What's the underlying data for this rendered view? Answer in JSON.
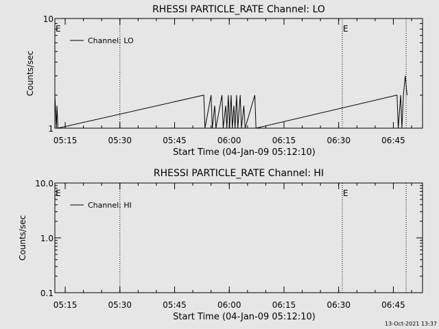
{
  "colors": {
    "background": "#e6e6e6",
    "foreground": "#000000"
  },
  "footer": {
    "timestamp": "13-Oct-2021 13:37"
  },
  "chart_data": [
    {
      "type": "line",
      "title": "RHESSI PARTICLE_RATE Channel: LO",
      "xlabel": "Start Time (04-Jan-09 05:12:10)",
      "ylabel": "Counts/sec",
      "yscale": "log",
      "ylim": [
        1,
        10
      ],
      "xlim": [
        "05:12:10",
        "06:53:00"
      ],
      "yticks": [
        {
          "value": 1,
          "label": "1"
        },
        {
          "value": 10,
          "label": "10"
        }
      ],
      "xticks": [
        "05:15",
        "05:30",
        "05:45",
        "06:00",
        "06:15",
        "06:30",
        "06:45"
      ],
      "event_markers": [
        {
          "time": "05:12:10",
          "label": "E"
        },
        {
          "time": "05:30:00",
          "label": ""
        },
        {
          "time": "06:31:00",
          "label": "E"
        },
        {
          "time": "06:48:30",
          "label": ""
        }
      ],
      "legend": {
        "position": "top-left",
        "entries": [
          "Channel: LO"
        ]
      },
      "series": [
        {
          "name": "Channel: LO",
          "points": [
            [
              "05:12:10",
              2
            ],
            [
              "05:12:35",
              1
            ],
            [
              "05:12:45",
              1.6
            ],
            [
              "05:13:00",
              1
            ],
            [
              "05:53:00",
              2
            ],
            [
              "05:53:20",
              1
            ],
            [
              "05:55:00",
              2
            ],
            [
              "05:55:20",
              1
            ],
            [
              "05:56:00",
              1.6
            ],
            [
              "05:56:20",
              1
            ],
            [
              "05:58:00",
              2
            ],
            [
              "05:58:20",
              1
            ],
            [
              "05:59:00",
              1.6
            ],
            [
              "05:59:20",
              1
            ],
            [
              "05:59:45",
              2
            ],
            [
              "06:00:05",
              1
            ],
            [
              "06:00:30",
              2
            ],
            [
              "06:00:50",
              1
            ],
            [
              "06:01:15",
              1.6
            ],
            [
              "06:01:35",
              1
            ],
            [
              "06:02:00",
              2
            ],
            [
              "06:02:20",
              1
            ],
            [
              "06:03:00",
              2
            ],
            [
              "06:03:20",
              1
            ],
            [
              "06:04:00",
              1.6
            ],
            [
              "06:04:20",
              1
            ],
            [
              "06:07:00",
              2
            ],
            [
              "06:07:20",
              1
            ],
            [
              "06:46:00",
              2
            ],
            [
              "06:46:20",
              1
            ],
            [
              "06:47:00",
              2
            ],
            [
              "06:47:20",
              1
            ],
            [
              "06:47:45",
              2
            ],
            [
              "06:48:15",
              3
            ],
            [
              "06:48:45",
              2
            ]
          ]
        }
      ]
    },
    {
      "type": "line",
      "title": "RHESSI PARTICLE_RATE Channel: HI",
      "xlabel": "Start Time (04-Jan-09 05:12:10)",
      "ylabel": "Counts/sec",
      "yscale": "log",
      "ylim": [
        0.1,
        10
      ],
      "xlim": [
        "05:12:10",
        "06:53:00"
      ],
      "yticks": [
        {
          "value": 0.1,
          "label": "0.1"
        },
        {
          "value": 1,
          "label": "1.0"
        },
        {
          "value": 10,
          "label": "10.0"
        }
      ],
      "xticks": [
        "05:15",
        "05:30",
        "05:45",
        "06:00",
        "06:15",
        "06:30",
        "06:45"
      ],
      "event_markers": [
        {
          "time": "05:12:10",
          "label": "E"
        },
        {
          "time": "05:30:00",
          "label": ""
        },
        {
          "time": "06:31:00",
          "label": "E"
        },
        {
          "time": "06:48:30",
          "label": ""
        }
      ],
      "legend": {
        "position": "top-left",
        "entries": [
          "Channel: HI"
        ]
      },
      "series": [
        {
          "name": "Channel: HI",
          "points": []
        }
      ]
    }
  ]
}
